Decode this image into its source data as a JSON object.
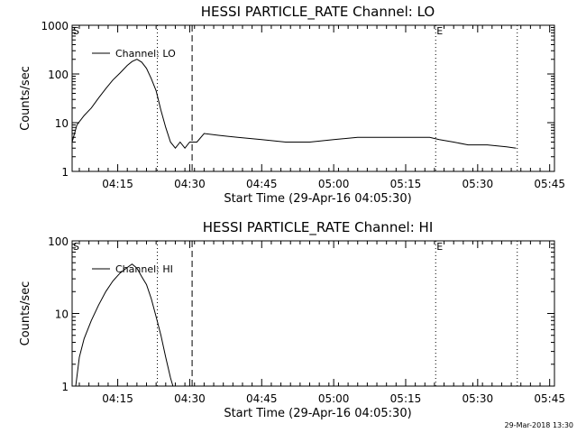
{
  "footer_timestamp": "29-Mar-2018 13:30",
  "chart_data": [
    {
      "type": "line",
      "title": "HESSI PARTICLE_RATE Channel: LO",
      "xlabel": "Start Time (29-Apr-16 04:05:30)",
      "ylabel": "Counts/sec",
      "x_range": [
        "04:05:30",
        "05:46:00"
      ],
      "y_scale": "log",
      "ylim": [
        1,
        1000
      ],
      "x_ticks": [
        "04:15",
        "04:30",
        "04:45",
        "05:00",
        "05:15",
        "05:30",
        "05:45"
      ],
      "y_ticks": [
        "1",
        "10",
        "100",
        "1000"
      ],
      "legend": "top-left",
      "markers": [
        {
          "label": "S",
          "time": "04:05:30",
          "style": "dotted"
        },
        {
          "label": "",
          "time": "04:23:15",
          "style": "dotted"
        },
        {
          "label": "",
          "time": "04:30:30",
          "style": "dashed"
        },
        {
          "label": "E",
          "time": "05:21:15",
          "style": "dotted"
        },
        {
          "label": "",
          "time": "05:38:15",
          "style": "dotted"
        }
      ],
      "series": [
        {
          "name": "Channel: LO",
          "points": [
            [
              "04:05:30",
              4
            ],
            [
              "04:06:30",
              9
            ],
            [
              "04:08:00",
              14
            ],
            [
              "04:09:30",
              20
            ],
            [
              "04:11:00",
              32
            ],
            [
              "04:12:30",
              50
            ],
            [
              "04:14:00",
              75
            ],
            [
              "04:15:30",
              105
            ],
            [
              "04:17:00",
              150
            ],
            [
              "04:18:00",
              180
            ],
            [
              "04:19:00",
              200
            ],
            [
              "04:20:00",
              175
            ],
            [
              "04:21:00",
              130
            ],
            [
              "04:22:00",
              80
            ],
            [
              "04:23:00",
              45
            ],
            [
              "04:24:00",
              18
            ],
            [
              "04:25:00",
              8
            ],
            [
              "04:26:00",
              4
            ],
            [
              "04:27:00",
              3
            ],
            [
              "04:28:00",
              4
            ],
            [
              "04:29:00",
              3
            ],
            [
              "04:30:00",
              4
            ],
            [
              "04:31:30",
              4
            ],
            [
              "04:33:00",
              6
            ],
            [
              "04:36:00",
              5.5
            ],
            [
              "04:40:00",
              5
            ],
            [
              "04:45:00",
              4.5
            ],
            [
              "04:50:00",
              4
            ],
            [
              "04:55:00",
              4
            ],
            [
              "05:00:00",
              4.5
            ],
            [
              "05:05:00",
              5
            ],
            [
              "05:10:00",
              5
            ],
            [
              "05:15:00",
              5
            ],
            [
              "05:20:00",
              5
            ],
            [
              "05:22:00",
              4.5
            ],
            [
              "05:25:00",
              4
            ],
            [
              "05:28:00",
              3.5
            ],
            [
              "05:32:00",
              3.5
            ],
            [
              "05:36:00",
              3.2
            ],
            [
              "05:38:00",
              3
            ]
          ]
        }
      ]
    },
    {
      "type": "line",
      "title": "HESSI PARTICLE_RATE Channel: HI",
      "xlabel": "Start Time (29-Apr-16 04:05:30)",
      "ylabel": "Counts/sec",
      "x_range": [
        "04:05:30",
        "05:46:00"
      ],
      "y_scale": "log",
      "ylim": [
        1,
        100
      ],
      "x_ticks": [
        "04:15",
        "04:30",
        "04:45",
        "05:00",
        "05:15",
        "05:30",
        "05:45"
      ],
      "y_ticks": [
        "1",
        "10",
        "100"
      ],
      "legend": "top-left",
      "markers": [
        {
          "label": "S",
          "time": "04:05:30",
          "style": "dotted"
        },
        {
          "label": "",
          "time": "04:23:15",
          "style": "dotted"
        },
        {
          "label": "",
          "time": "04:30:30",
          "style": "dashed"
        },
        {
          "label": "E",
          "time": "05:21:15",
          "style": "dotted"
        },
        {
          "label": "",
          "time": "05:38:15",
          "style": "dotted"
        }
      ],
      "series": [
        {
          "name": "Channel: HI",
          "points": [
            [
              "04:06:15",
              1
            ],
            [
              "04:07:00",
              2.5
            ],
            [
              "04:08:00",
              4.5
            ],
            [
              "04:09:30",
              8
            ],
            [
              "04:11:00",
              13
            ],
            [
              "04:12:30",
              20
            ],
            [
              "04:14:00",
              28
            ],
            [
              "04:15:30",
              36
            ],
            [
              "04:17:00",
              43
            ],
            [
              "04:18:00",
              48
            ],
            [
              "04:19:00",
              42
            ],
            [
              "04:20:00",
              32
            ],
            [
              "04:21:00",
              25
            ],
            [
              "04:22:00",
              16
            ],
            [
              "04:23:00",
              9
            ],
            [
              "04:24:00",
              5
            ],
            [
              "04:25:00",
              2.5
            ],
            [
              "04:26:00",
              1.3
            ],
            [
              "04:26:30",
              1
            ]
          ]
        }
      ]
    }
  ]
}
